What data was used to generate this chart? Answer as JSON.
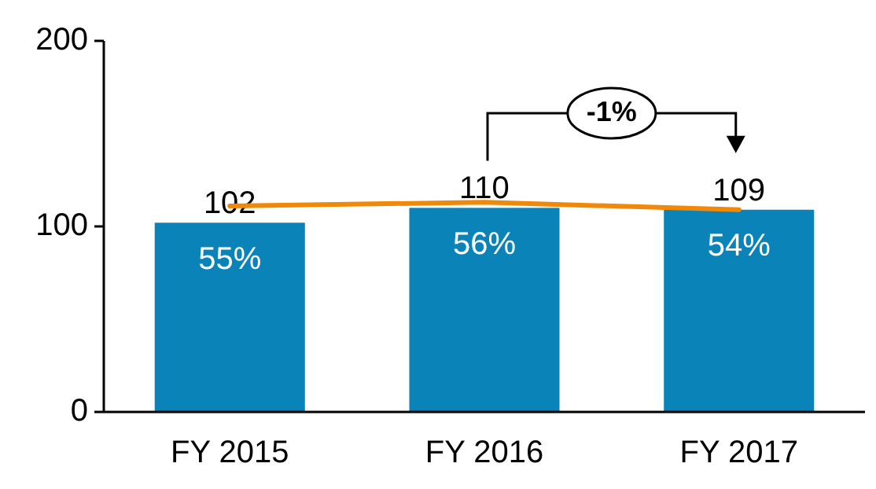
{
  "chart_data": {
    "type": "bar",
    "categories": [
      "FY 2015",
      "FY 2016",
      "FY 2017"
    ],
    "series": [
      {
        "color": "#0a84b8",
        "values": [
          102,
          110,
          109
        ],
        "value_labels": [
          "102",
          "110",
          "109"
        ]
      },
      {
        "type": "line",
        "color": "#f0880a",
        "values": [
          111,
          113,
          109
        ]
      }
    ],
    "ylim": [
      0,
      200
    ],
    "yticks": [
      0,
      100,
      200
    ],
    "grid": false,
    "annotations": [
      "55%",
      "56%",
      "54%",
      "-1%"
    ]
  }
}
